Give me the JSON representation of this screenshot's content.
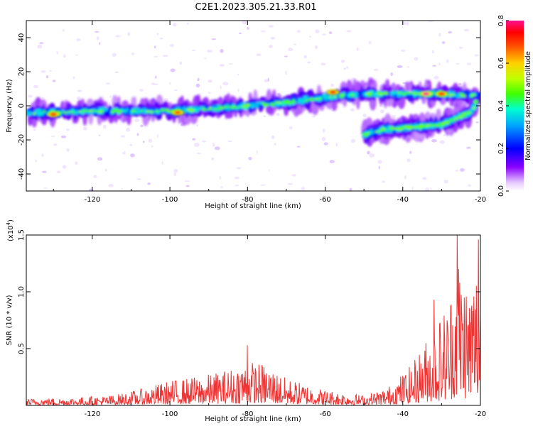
{
  "title": "C2E1.2023.305.21.33.R01",
  "chart_data": [
    {
      "type": "heatmap",
      "xlabel": "Height of straight line (km)",
      "ylabel": "Frequency (Hz)",
      "xlim": [
        -137,
        -20
      ],
      "ylim": [
        -50,
        50
      ],
      "x_ticks": [
        "-120",
        "-100",
        "-80",
        "-60",
        "-40",
        "-20"
      ],
      "y_ticks": [
        "40",
        "20",
        "0",
        "-20",
        "-40"
      ],
      "colorbar": {
        "label": "Normalized spectral amplitude",
        "range": [
          0.0,
          0.8
        ],
        "ticks": [
          "0.0",
          "0.2",
          "0.4",
          "0.6",
          "0.8"
        ]
      },
      "main_band": [
        {
          "x": -136,
          "y": -4
        },
        {
          "x": -130,
          "y": -4
        },
        {
          "x": -120,
          "y": -3
        },
        {
          "x": -110,
          "y": -3
        },
        {
          "x": -100,
          "y": -3
        },
        {
          "x": -90,
          "y": -2
        },
        {
          "x": -80,
          "y": 0
        },
        {
          "x": -70,
          "y": 2
        },
        {
          "x": -60,
          "y": 5
        },
        {
          "x": -50,
          "y": 7
        },
        {
          "x": -40,
          "y": 7
        },
        {
          "x": -30,
          "y": 7
        },
        {
          "x": -21,
          "y": 6
        }
      ],
      "secondary_band": [
        {
          "x": -50,
          "y": -17
        },
        {
          "x": -45,
          "y": -14
        },
        {
          "x": -40,
          "y": -13
        },
        {
          "x": -35,
          "y": -12
        },
        {
          "x": -30,
          "y": -11
        },
        {
          "x": -26,
          "y": -7
        },
        {
          "x": -22,
          "y": -3
        },
        {
          "x": -21,
          "y": 3
        }
      ],
      "peaks": [
        {
          "x": -130,
          "y": -5,
          "amp": 0.75
        },
        {
          "x": -98,
          "y": -4,
          "amp": 0.7
        },
        {
          "x": -58,
          "y": 8,
          "amp": 0.75
        },
        {
          "x": -34,
          "y": 7,
          "amp": 0.8
        },
        {
          "x": -30,
          "y": 7,
          "amp": 0.75
        }
      ]
    },
    {
      "type": "line",
      "xlabel": "Height of straight line (km)",
      "ylabel": "SNR (10 * v/v)",
      "y_scale_label": "(x10",
      "y_scale_exp": "4",
      "xlim": [
        -137,
        -20
      ],
      "ylim": [
        0,
        15000
      ],
      "x_ticks": [
        "-120",
        "-100",
        "-80",
        "-60",
        "-40",
        "-20"
      ],
      "y_ticks": [
        "1.5",
        "1.0",
        "0.5"
      ],
      "color": "#ee3333",
      "envelope": [
        {
          "x": -137,
          "y": 600
        },
        {
          "x": -125,
          "y": 700
        },
        {
          "x": -115,
          "y": 900
        },
        {
          "x": -108,
          "y": 1400
        },
        {
          "x": -100,
          "y": 2200
        },
        {
          "x": -92,
          "y": 2600
        },
        {
          "x": -85,
          "y": 3200
        },
        {
          "x": -80,
          "y": 4000
        },
        {
          "x": -75,
          "y": 3600
        },
        {
          "x": -70,
          "y": 2400
        },
        {
          "x": -60,
          "y": 1400
        },
        {
          "x": -50,
          "y": 900
        },
        {
          "x": -44,
          "y": 1600
        },
        {
          "x": -38,
          "y": 3500
        },
        {
          "x": -33,
          "y": 6500
        },
        {
          "x": -28,
          "y": 9500
        },
        {
          "x": -26,
          "y": 14500
        },
        {
          "x": -23,
          "y": 11000
        },
        {
          "x": -20,
          "y": 14000
        }
      ],
      "spikes": [
        {
          "x": -80,
          "y": 5300
        },
        {
          "x": -32,
          "y": 9300
        },
        {
          "x": -26,
          "y": 15000
        },
        {
          "x": -20.5,
          "y": 14600
        }
      ]
    }
  ]
}
